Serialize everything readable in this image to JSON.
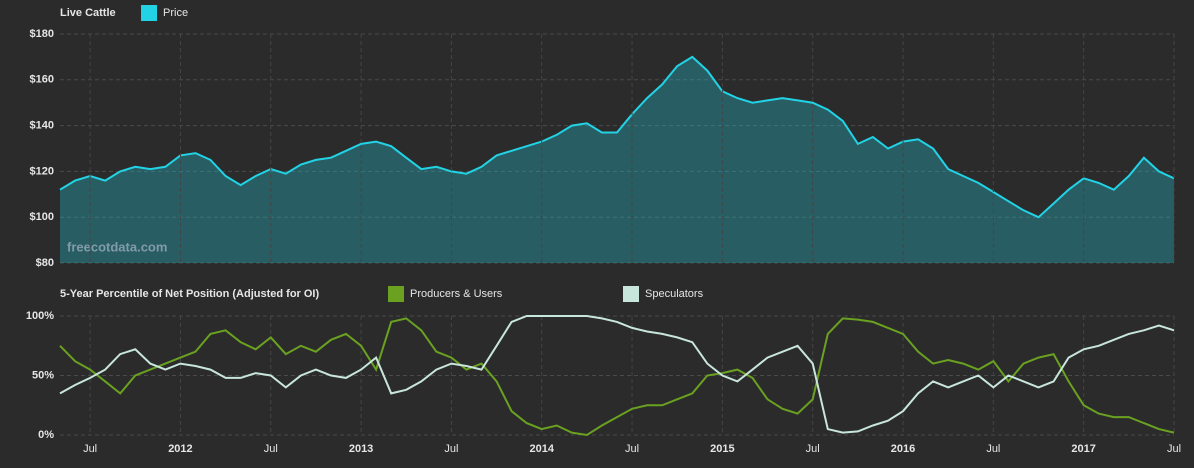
{
  "chart_data": [
    {
      "type": "area",
      "title": "Live Cattle",
      "watermark": "freecotdata.com",
      "grid": true,
      "x": [
        "2011-05",
        "2011-06",
        "2011-07",
        "2011-08",
        "2011-09",
        "2011-10",
        "2011-11",
        "2011-12",
        "2012-01",
        "2012-02",
        "2012-03",
        "2012-04",
        "2012-05",
        "2012-06",
        "2012-07",
        "2012-08",
        "2012-09",
        "2012-10",
        "2012-11",
        "2012-12",
        "2013-01",
        "2013-02",
        "2013-03",
        "2013-04",
        "2013-05",
        "2013-06",
        "2013-07",
        "2013-08",
        "2013-09",
        "2013-10",
        "2013-11",
        "2013-12",
        "2014-01",
        "2014-02",
        "2014-03",
        "2014-04",
        "2014-05",
        "2014-06",
        "2014-07",
        "2014-08",
        "2014-09",
        "2014-10",
        "2014-11",
        "2014-12",
        "2015-01",
        "2015-02",
        "2015-03",
        "2015-04",
        "2015-05",
        "2015-06",
        "2015-07",
        "2015-08",
        "2015-09",
        "2015-10",
        "2015-11",
        "2015-12",
        "2016-01",
        "2016-02",
        "2016-03",
        "2016-04",
        "2016-05",
        "2016-06",
        "2016-07",
        "2016-08",
        "2016-09",
        "2016-10",
        "2016-11",
        "2016-12",
        "2017-01",
        "2017-02",
        "2017-03",
        "2017-04",
        "2017-05",
        "2017-06",
        "2017-07"
      ],
      "xlim": [
        "2011-05",
        "2017-07"
      ],
      "series": [
        {
          "name": "Price",
          "color": "#22d3e6",
          "values": [
            112,
            116,
            118,
            116,
            120,
            122,
            121,
            122,
            127,
            128,
            125,
            118,
            114,
            118,
            121,
            119,
            123,
            125,
            126,
            129,
            132,
            133,
            131,
            126,
            121,
            122,
            120,
            119,
            122,
            127,
            129,
            131,
            133,
            136,
            140,
            141,
            137,
            137,
            145,
            152,
            158,
            166,
            170,
            164,
            155,
            152,
            150,
            151,
            152,
            151,
            150,
            147,
            142,
            132,
            135,
            130,
            133,
            134,
            130,
            121,
            118,
            115,
            111,
            107,
            103,
            100,
            106,
            112,
            117,
            115,
            112,
            118,
            126,
            120,
            117
          ]
        }
      ],
      "ylim": [
        80,
        180
      ],
      "yticks": [
        {
          "value": 80,
          "label": "$80"
        },
        {
          "value": 100,
          "label": "$100"
        },
        {
          "value": 120,
          "label": "$120"
        },
        {
          "value": 140,
          "label": "$140"
        },
        {
          "value": 160,
          "label": "$160"
        },
        {
          "value": 180,
          "label": "$180"
        }
      ]
    },
    {
      "type": "line",
      "title": "5-Year Percentile of Net Position (Adjusted for OI)",
      "grid": true,
      "x": [
        "2011-05",
        "2011-06",
        "2011-07",
        "2011-08",
        "2011-09",
        "2011-10",
        "2011-11",
        "2011-12",
        "2012-01",
        "2012-02",
        "2012-03",
        "2012-04",
        "2012-05",
        "2012-06",
        "2012-07",
        "2012-08",
        "2012-09",
        "2012-10",
        "2012-11",
        "2012-12",
        "2013-01",
        "2013-02",
        "2013-03",
        "2013-04",
        "2013-05",
        "2013-06",
        "2013-07",
        "2013-08",
        "2013-09",
        "2013-10",
        "2013-11",
        "2013-12",
        "2014-01",
        "2014-02",
        "2014-03",
        "2014-04",
        "2014-05",
        "2014-06",
        "2014-07",
        "2014-08",
        "2014-09",
        "2014-10",
        "2014-11",
        "2014-12",
        "2015-01",
        "2015-02",
        "2015-03",
        "2015-04",
        "2015-05",
        "2015-06",
        "2015-07",
        "2015-08",
        "2015-09",
        "2015-10",
        "2015-11",
        "2015-12",
        "2016-01",
        "2016-02",
        "2016-03",
        "2016-04",
        "2016-05",
        "2016-06",
        "2016-07",
        "2016-08",
        "2016-09",
        "2016-10",
        "2016-11",
        "2016-12",
        "2017-01",
        "2017-02",
        "2017-03",
        "2017-04",
        "2017-05",
        "2017-06",
        "2017-07"
      ],
      "xlim": [
        "2011-05",
        "2017-07"
      ],
      "xticks": [
        {
          "value": "2011-07",
          "label": "Jul"
        },
        {
          "value": "2012-01",
          "label": "2012"
        },
        {
          "value": "2012-07",
          "label": "Jul"
        },
        {
          "value": "2013-01",
          "label": "2013"
        },
        {
          "value": "2013-07",
          "label": "Jul"
        },
        {
          "value": "2014-01",
          "label": "2014"
        },
        {
          "value": "2014-07",
          "label": "Jul"
        },
        {
          "value": "2015-01",
          "label": "2015"
        },
        {
          "value": "2015-07",
          "label": "Jul"
        },
        {
          "value": "2016-01",
          "label": "2016"
        },
        {
          "value": "2016-07",
          "label": "Jul"
        },
        {
          "value": "2017-01",
          "label": "2017"
        },
        {
          "value": "2017-07",
          "label": "Jul"
        }
      ],
      "series": [
        {
          "name": "Producers & Users",
          "color": "#6aa121",
          "values": [
            75,
            62,
            55,
            45,
            35,
            50,
            55,
            60,
            65,
            70,
            85,
            88,
            78,
            72,
            82,
            68,
            75,
            70,
            80,
            85,
            75,
            55,
            95,
            98,
            88,
            70,
            65,
            55,
            60,
            45,
            20,
            10,
            5,
            8,
            2,
            0,
            8,
            15,
            22,
            25,
            25,
            30,
            35,
            50,
            52,
            55,
            48,
            30,
            22,
            18,
            30,
            85,
            98,
            97,
            95,
            90,
            85,
            70,
            60,
            63,
            60,
            55,
            62,
            45,
            60,
            65,
            68,
            45,
            25,
            18,
            15,
            15,
            10,
            5,
            2
          ]
        },
        {
          "name": "Speculators",
          "color": "#c8e6dc",
          "values": [
            35,
            42,
            48,
            55,
            68,
            72,
            60,
            55,
            60,
            58,
            55,
            48,
            48,
            52,
            50,
            40,
            50,
            55,
            50,
            48,
            55,
            65,
            35,
            38,
            45,
            55,
            60,
            58,
            55,
            75,
            95,
            100,
            100,
            100,
            100,
            100,
            98,
            95,
            90,
            87,
            85,
            82,
            78,
            60,
            50,
            45,
            55,
            65,
            70,
            75,
            60,
            5,
            2,
            3,
            8,
            12,
            20,
            35,
            45,
            40,
            45,
            50,
            40,
            50,
            45,
            40,
            45,
            65,
            72,
            75,
            80,
            85,
            88,
            92,
            88
          ]
        }
      ],
      "ylim": [
        0,
        100
      ],
      "yticks": [
        {
          "value": 0,
          "label": "0%"
        },
        {
          "value": 50,
          "label": "50%"
        },
        {
          "value": 100,
          "label": "100%"
        }
      ]
    }
  ]
}
